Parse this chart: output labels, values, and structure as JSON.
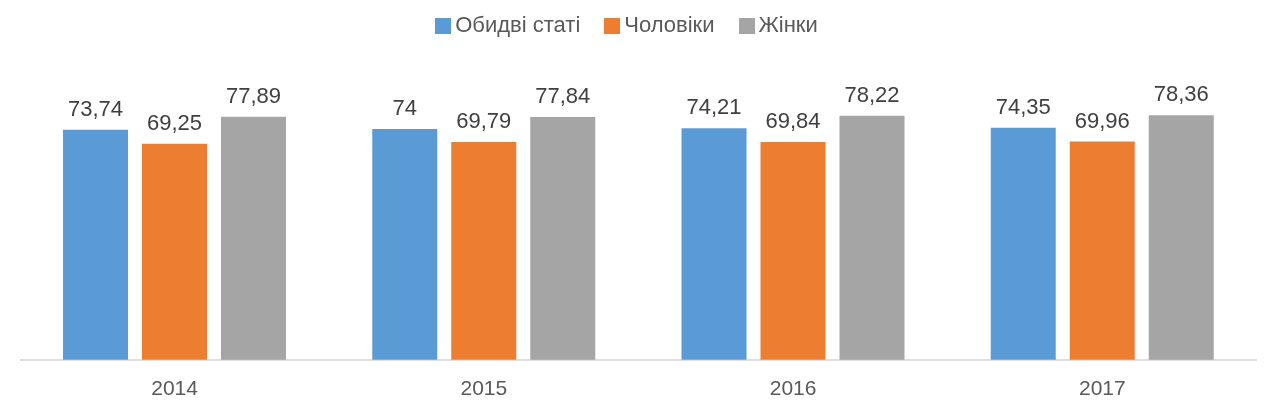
{
  "chart_data": {
    "type": "bar",
    "categories": [
      "2014",
      "2015",
      "2016",
      "2017"
    ],
    "series": [
      {
        "name": "Обидві статі",
        "color": "#5b9bd5",
        "values": [
          73.74,
          74,
          74.21,
          74.35
        ],
        "value_labels": [
          "73,74",
          "74",
          "74,21",
          "74,35"
        ]
      },
      {
        "name": "Чоловіки",
        "color": "#ed7d31",
        "values": [
          69.25,
          69.79,
          69.84,
          69.96
        ],
        "value_labels": [
          "69,25",
          "69,79",
          "69,84",
          "69,96"
        ]
      },
      {
        "name": "Жінки",
        "color": "#a5a5a5",
        "values": [
          77.89,
          77.84,
          78.22,
          78.36
        ],
        "value_labels": [
          "77,89",
          "77,84",
          "78,22",
          "78,36"
        ]
      }
    ],
    "tick_labels": "x",
    "legend": "top",
    "grid": false
  }
}
